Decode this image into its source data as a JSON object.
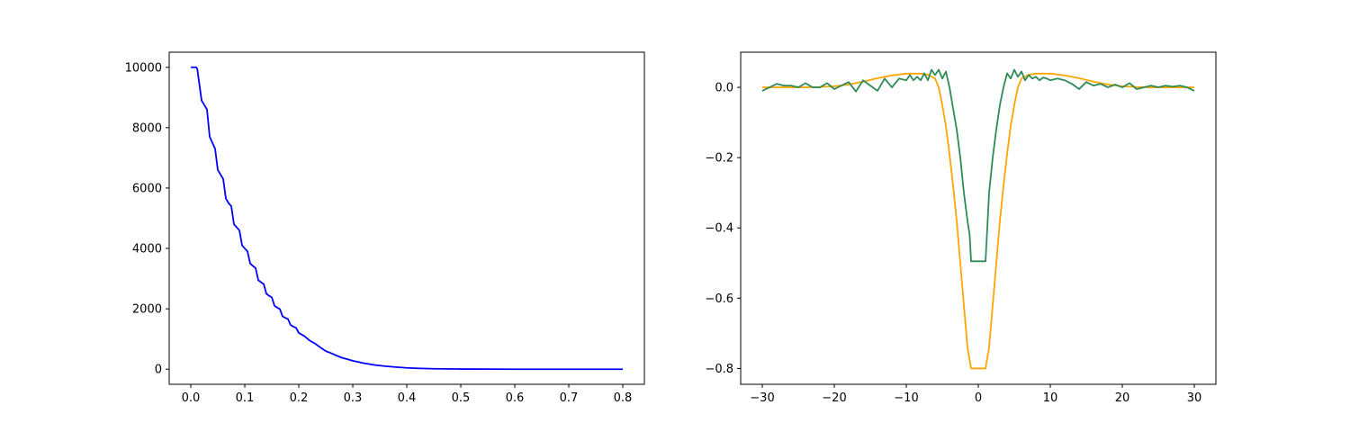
{
  "chart_data": [
    {
      "type": "line",
      "title": "",
      "xlabel": "",
      "ylabel": "",
      "xlim": [
        -0.04,
        0.84
      ],
      "ylim": [
        -500,
        10500
      ],
      "x_ticks": [
        0.0,
        0.1,
        0.2,
        0.3,
        0.4,
        0.5,
        0.6,
        0.7,
        0.8
      ],
      "x_tick_labels": [
        "0.0",
        "0.1",
        "0.2",
        "0.3",
        "0.4",
        "0.5",
        "0.6",
        "0.7",
        "0.8"
      ],
      "y_ticks": [
        0,
        2000,
        4000,
        6000,
        8000,
        10000
      ],
      "y_tick_labels": [
        "0",
        "2000",
        "4000",
        "6000",
        "8000",
        "10000"
      ],
      "grid": false,
      "legend": "none",
      "series": [
        {
          "color": "#0000ff",
          "x": [
            0.0,
            0.01,
            0.012,
            0.02,
            0.025,
            0.03,
            0.035,
            0.04,
            0.045,
            0.05,
            0.055,
            0.06,
            0.065,
            0.07,
            0.075,
            0.08,
            0.085,
            0.09,
            0.095,
            0.1,
            0.105,
            0.11,
            0.115,
            0.12,
            0.125,
            0.13,
            0.135,
            0.14,
            0.145,
            0.15,
            0.155,
            0.16,
            0.165,
            0.17,
            0.175,
            0.18,
            0.185,
            0.19,
            0.195,
            0.2,
            0.21,
            0.22,
            0.23,
            0.24,
            0.25,
            0.26,
            0.27,
            0.28,
            0.29,
            0.3,
            0.32,
            0.34,
            0.36,
            0.38,
            0.4,
            0.42,
            0.45,
            0.5,
            0.55,
            0.6,
            0.7,
            0.8
          ],
          "y": [
            10000,
            10000,
            9950,
            8900,
            8750,
            8600,
            7700,
            7500,
            7300,
            6600,
            6450,
            6300,
            5650,
            5500,
            5400,
            4800,
            4700,
            4600,
            4100,
            4000,
            3900,
            3500,
            3420,
            3350,
            2950,
            2880,
            2820,
            2500,
            2430,
            2380,
            2100,
            2040,
            1990,
            1750,
            1700,
            1660,
            1460,
            1410,
            1370,
            1200,
            1100,
            950,
            850,
            720,
            600,
            530,
            450,
            380,
            330,
            280,
            200,
            140,
            100,
            70,
            45,
            30,
            15,
            5,
            2,
            0,
            0,
            0
          ]
        }
      ]
    },
    {
      "type": "line",
      "title": "",
      "xlabel": "",
      "ylabel": "",
      "xlim": [
        -33,
        33
      ],
      "ylim": [
        -0.845,
        0.1
      ],
      "x_ticks": [
        -30,
        -20,
        -10,
        0,
        10,
        20,
        30
      ],
      "x_tick_labels": [
        "−30",
        "−20",
        "−10",
        "0",
        "10",
        "20",
        "30"
      ],
      "y_ticks": [
        0.0,
        -0.2,
        -0.4,
        -0.6,
        -0.8
      ],
      "y_tick_labels": [
        "0.0",
        "−0.2",
        "−0.4",
        "−0.6",
        "−0.8"
      ],
      "grid": false,
      "legend": "none",
      "series": [
        {
          "color": "#ffa500",
          "x": [
            -30,
            -28,
            -26,
            -24,
            -22,
            -20,
            -18,
            -16,
            -14,
            -12,
            -10,
            -8,
            -7,
            -6,
            -5.5,
            -5,
            -4.5,
            -4,
            -3.5,
            -3,
            -2.5,
            -2,
            -1.5,
            -1,
            1,
            1.5,
            2,
            2.5,
            3,
            3.5,
            4,
            4.5,
            5,
            5.5,
            6,
            7,
            8,
            10,
            12,
            14,
            16,
            18,
            20,
            22,
            24,
            26,
            28,
            30
          ],
          "y": [
            0.0,
            0.0,
            0.0,
            0.0,
            0.001,
            0.003,
            0.008,
            0.016,
            0.026,
            0.034,
            0.039,
            0.039,
            0.036,
            0.025,
            0.0,
            -0.05,
            -0.11,
            -0.19,
            -0.28,
            -0.38,
            -0.5,
            -0.62,
            -0.74,
            -0.8,
            -0.8,
            -0.74,
            -0.62,
            -0.5,
            -0.38,
            -0.28,
            -0.19,
            -0.11,
            -0.05,
            0.0,
            0.025,
            0.036,
            0.039,
            0.039,
            0.034,
            0.026,
            0.016,
            0.008,
            0.003,
            0.001,
            0.0,
            0.0,
            0.0,
            0.0
          ]
        },
        {
          "color": "#2e8b57",
          "x": [
            -30,
            -29,
            -28,
            -27,
            -26,
            -25,
            -24,
            -23,
            -22,
            -21,
            -20,
            -19,
            -18,
            -17,
            -16,
            -15,
            -14,
            -13,
            -12,
            -11,
            -10,
            -9.5,
            -9,
            -8.5,
            -8,
            -7.5,
            -7,
            -6.5,
            -6,
            -5.5,
            -5,
            -4.5,
            -4,
            -3.5,
            -3,
            -2.5,
            -2,
            -1.5,
            -1.2,
            -1,
            1,
            1.2,
            1.5,
            2,
            2.5,
            3,
            3.5,
            4,
            4.5,
            5,
            5.5,
            6,
            6.5,
            7,
            7.5,
            8,
            8.5,
            9,
            9.5,
            10,
            11,
            12,
            13,
            14,
            15,
            16,
            17,
            18,
            19,
            20,
            21,
            22,
            23,
            24,
            25,
            26,
            27,
            28,
            29,
            30
          ],
          "y": [
            -0.01,
            0.0,
            0.01,
            0.005,
            0.005,
            0.0,
            0.012,
            0.0,
            0.0,
            0.012,
            -0.005,
            0.005,
            0.015,
            -0.012,
            0.02,
            0.005,
            -0.01,
            0.025,
            0.0,
            0.025,
            0.02,
            0.035,
            0.02,
            0.03,
            0.02,
            0.04,
            0.02,
            0.05,
            0.035,
            0.05,
            0.025,
            0.045,
            0.0,
            -0.06,
            -0.12,
            -0.2,
            -0.3,
            -0.38,
            -0.42,
            -0.495,
            -0.495,
            -0.42,
            -0.3,
            -0.2,
            -0.12,
            -0.05,
            0.0,
            0.04,
            0.025,
            0.05,
            0.03,
            0.045,
            0.02,
            0.035,
            0.025,
            0.03,
            0.02,
            0.028,
            0.025,
            0.02,
            0.025,
            0.02,
            0.01,
            -0.005,
            0.015,
            0.005,
            0.01,
            0.0,
            0.008,
            0.0,
            0.012,
            -0.005,
            0.0,
            0.005,
            0.0,
            0.005,
            0.002,
            0.005,
            0.0,
            -0.01
          ]
        }
      ]
    }
  ]
}
